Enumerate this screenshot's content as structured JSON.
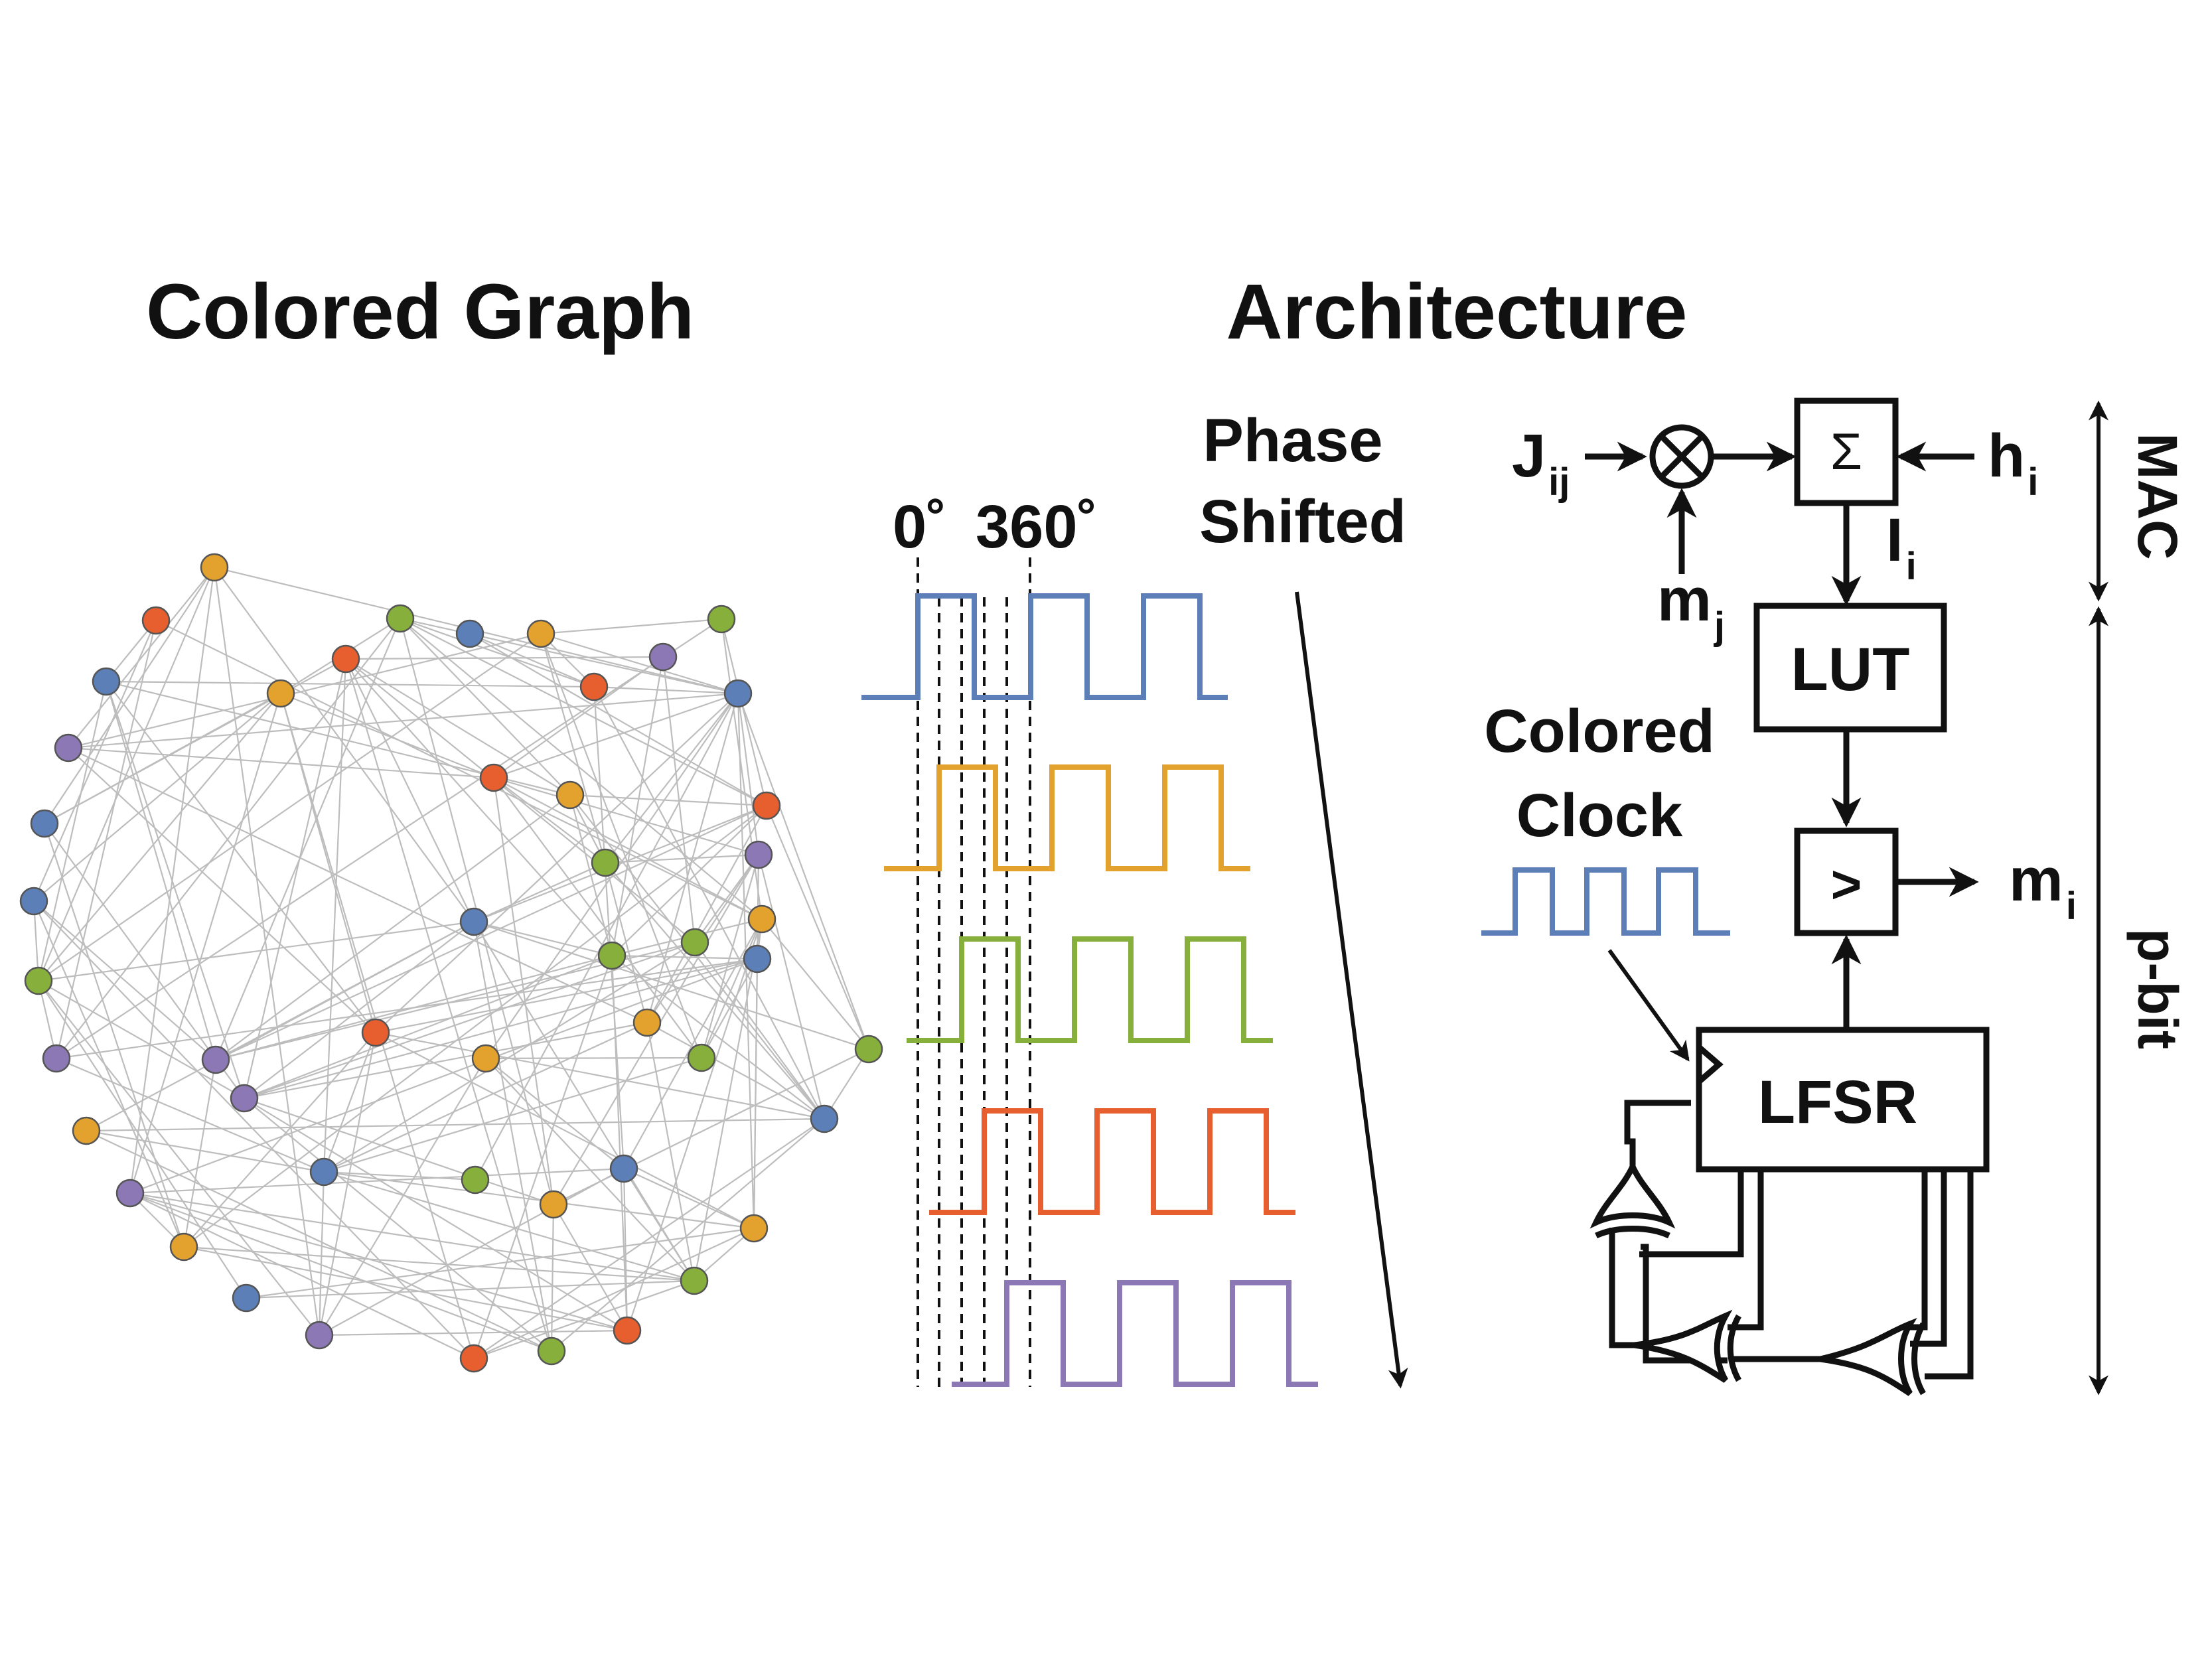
{
  "titles": {
    "left": "Colored Graph",
    "right": "Architecture"
  },
  "colors": {
    "blue": "#5b7fb6",
    "orange": "#e3a12e",
    "green": "#87af3c",
    "red": "#e85f2f",
    "purple": "#8d78b6",
    "edge": "#bdbdbd",
    "ink": "#111111"
  },
  "graph": {
    "node_colors": [
      "orange",
      "red",
      "blue",
      "purple",
      "blue",
      "blue",
      "green",
      "purple",
      "orange",
      "purple",
      "orange",
      "blue",
      "purple",
      "red",
      "green",
      "red",
      "green",
      "orange",
      "blue",
      "green",
      "red",
      "blue",
      "green",
      "purple",
      "red",
      "orange",
      "blue",
      "green",
      "red",
      "orange",
      "purple",
      "orange",
      "green",
      "orange",
      "blue",
      "orange",
      "blue",
      "red",
      "green",
      "green",
      "green",
      "green",
      "purple",
      "orange",
      "red",
      "blue",
      "blue",
      "orange",
      "purple"
    ],
    "edge_count": 190
  },
  "phase": {
    "start_label": "0˚",
    "end_label": "360˚",
    "shift_label_line1": "Phase",
    "shift_label_line2": "Shifted",
    "wave_colors": [
      "blue",
      "orange",
      "green",
      "red",
      "purple"
    ]
  },
  "architecture": {
    "j_main": "J",
    "j_sub": "ij",
    "h_main": "h",
    "h_sub": "i",
    "mj_main": "m",
    "mj_sub": "j",
    "i_main": "I",
    "i_sub": "i",
    "mi_main": "m",
    "mi_sub": "i",
    "sum_symbol": "Σ",
    "lut": "LUT",
    "comparator": ">",
    "lfsr": "LFSR",
    "clock_line1": "Colored",
    "clock_line2": "Clock",
    "mac": "MAC",
    "pbit": "p-bit"
  }
}
